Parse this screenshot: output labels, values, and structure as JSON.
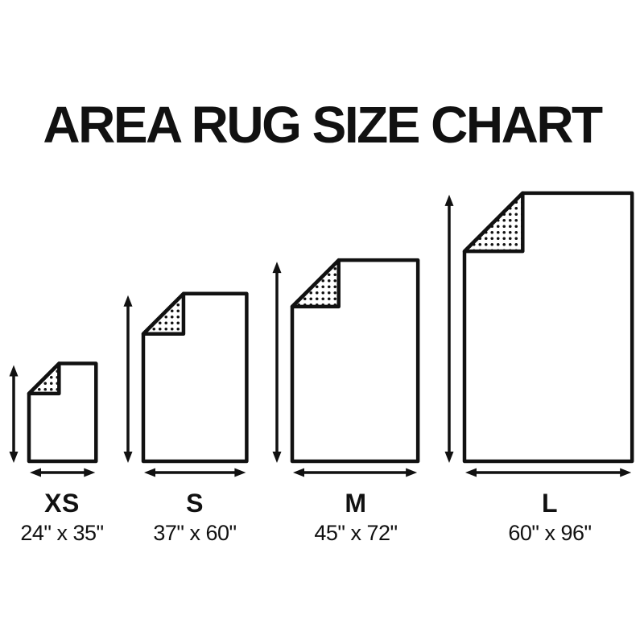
{
  "title": "AREA RUG SIZE CHART",
  "sizes": [
    {
      "label": "XS",
      "dimensions": "24\" x 35\"",
      "width_in": 24,
      "height_in": 35
    },
    {
      "label": "S",
      "dimensions": "37\" x 60\"",
      "width_in": 37,
      "height_in": 60
    },
    {
      "label": "M",
      "dimensions": "45\" x 72\"",
      "width_in": 45,
      "height_in": 72
    },
    {
      "label": "L",
      "dimensions": "60\" x 96\"",
      "width_in": 60,
      "height_in": 96
    }
  ],
  "colors": {
    "ink": "#111111",
    "background": "#ffffff"
  }
}
